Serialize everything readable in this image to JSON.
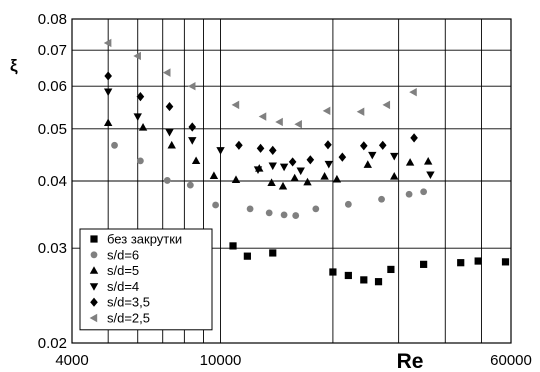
{
  "chart_data": {
    "type": "scatter",
    "xscale": "log",
    "yscale": "log",
    "xlim": [
      4000,
      60000
    ],
    "ylim": [
      0.02,
      0.08
    ],
    "xticks": [
      "4000",
      "10000",
      "60000"
    ],
    "yticks": [
      "0.02",
      "0.03",
      "0.04",
      "0.05",
      "0.06",
      "0.07",
      "0.08"
    ],
    "xlabel": "Re",
    "ylabel": "ξ",
    "grid": true,
    "legend_position": "bottom-left",
    "series": [
      {
        "name": "без закрутки",
        "marker": "square",
        "color": "#000000",
        "points": [
          [
            10800,
            0.0303
          ],
          [
            11800,
            0.029
          ],
          [
            13800,
            0.0294
          ],
          [
            20000,
            0.0271
          ],
          [
            22000,
            0.0267
          ],
          [
            24200,
            0.0262
          ],
          [
            26500,
            0.026
          ],
          [
            28600,
            0.0274
          ],
          [
            35000,
            0.028
          ],
          [
            44000,
            0.0282
          ],
          [
            49000,
            0.0284
          ],
          [
            58000,
            0.0283
          ]
        ]
      },
      {
        "name": "s/d=6",
        "marker": "circle",
        "color": "#808080",
        "points": [
          [
            5200,
            0.0466
          ],
          [
            6100,
            0.0436
          ],
          [
            7200,
            0.0401
          ],
          [
            8300,
            0.0393
          ],
          [
            9700,
            0.0361
          ],
          [
            12000,
            0.0355
          ],
          [
            13500,
            0.0349
          ],
          [
            14800,
            0.0346
          ],
          [
            15900,
            0.0345
          ],
          [
            18000,
            0.0355
          ],
          [
            22000,
            0.0362
          ],
          [
            27000,
            0.037
          ],
          [
            32000,
            0.0378
          ],
          [
            35000,
            0.0382
          ]
        ]
      },
      {
        "name": "s/d=5",
        "marker": "triangle-up",
        "color": "#000000",
        "points": [
          [
            5000,
            0.0513
          ],
          [
            6200,
            0.0503
          ],
          [
            7400,
            0.0466
          ],
          [
            8600,
            0.0436
          ],
          [
            9600,
            0.0409
          ],
          [
            11000,
            0.0402
          ],
          [
            12700,
            0.0422
          ],
          [
            13700,
            0.0397
          ],
          [
            14700,
            0.0391
          ],
          [
            15800,
            0.0405
          ],
          [
            17100,
            0.0398
          ],
          [
            19000,
            0.0408
          ],
          [
            20500,
            0.0403
          ],
          [
            24800,
            0.0429
          ],
          [
            29200,
            0.0408
          ],
          [
            32200,
            0.0433
          ],
          [
            36000,
            0.0435
          ]
        ]
      },
      {
        "name": "s/d=4",
        "marker": "triangle-down",
        "color": "#000000",
        "points": [
          [
            5000,
            0.0586
          ],
          [
            6000,
            0.0527
          ],
          [
            7300,
            0.0493
          ],
          [
            8400,
            0.0476
          ],
          [
            10000,
            0.0456
          ],
          [
            12600,
            0.042
          ],
          [
            13800,
            0.0427
          ],
          [
            14800,
            0.0425
          ],
          [
            16400,
            0.0418
          ],
          [
            19500,
            0.043
          ],
          [
            25500,
            0.0447
          ],
          [
            29200,
            0.0445
          ],
          [
            36500,
            0.0411
          ]
        ]
      },
      {
        "name": "s/d=3,5",
        "marker": "diamond",
        "color": "#000000",
        "points": [
          [
            5000,
            0.0627
          ],
          [
            6100,
            0.0574
          ],
          [
            7300,
            0.055
          ],
          [
            8400,
            0.0504
          ],
          [
            11200,
            0.0466
          ],
          [
            12800,
            0.046
          ],
          [
            13800,
            0.0456
          ],
          [
            15600,
            0.0434
          ],
          [
            17400,
            0.0438
          ],
          [
            19400,
            0.0467
          ],
          [
            21200,
            0.0443
          ],
          [
            24200,
            0.0465
          ],
          [
            27200,
            0.0466
          ],
          [
            33000,
            0.0481
          ]
        ]
      },
      {
        "name": "s/d=2,5",
        "marker": "triangle-left",
        "color": "#808080",
        "points": [
          [
            5000,
            0.0722
          ],
          [
            6000,
            0.0683
          ],
          [
            7200,
            0.0636
          ],
          [
            8400,
            0.06
          ],
          [
            11000,
            0.0554
          ],
          [
            13000,
            0.0527
          ],
          [
            14400,
            0.0515
          ],
          [
            16200,
            0.051
          ],
          [
            19300,
            0.054
          ],
          [
            23800,
            0.0538
          ],
          [
            27900,
            0.0554
          ],
          [
            32900,
            0.0585
          ]
        ]
      }
    ]
  }
}
